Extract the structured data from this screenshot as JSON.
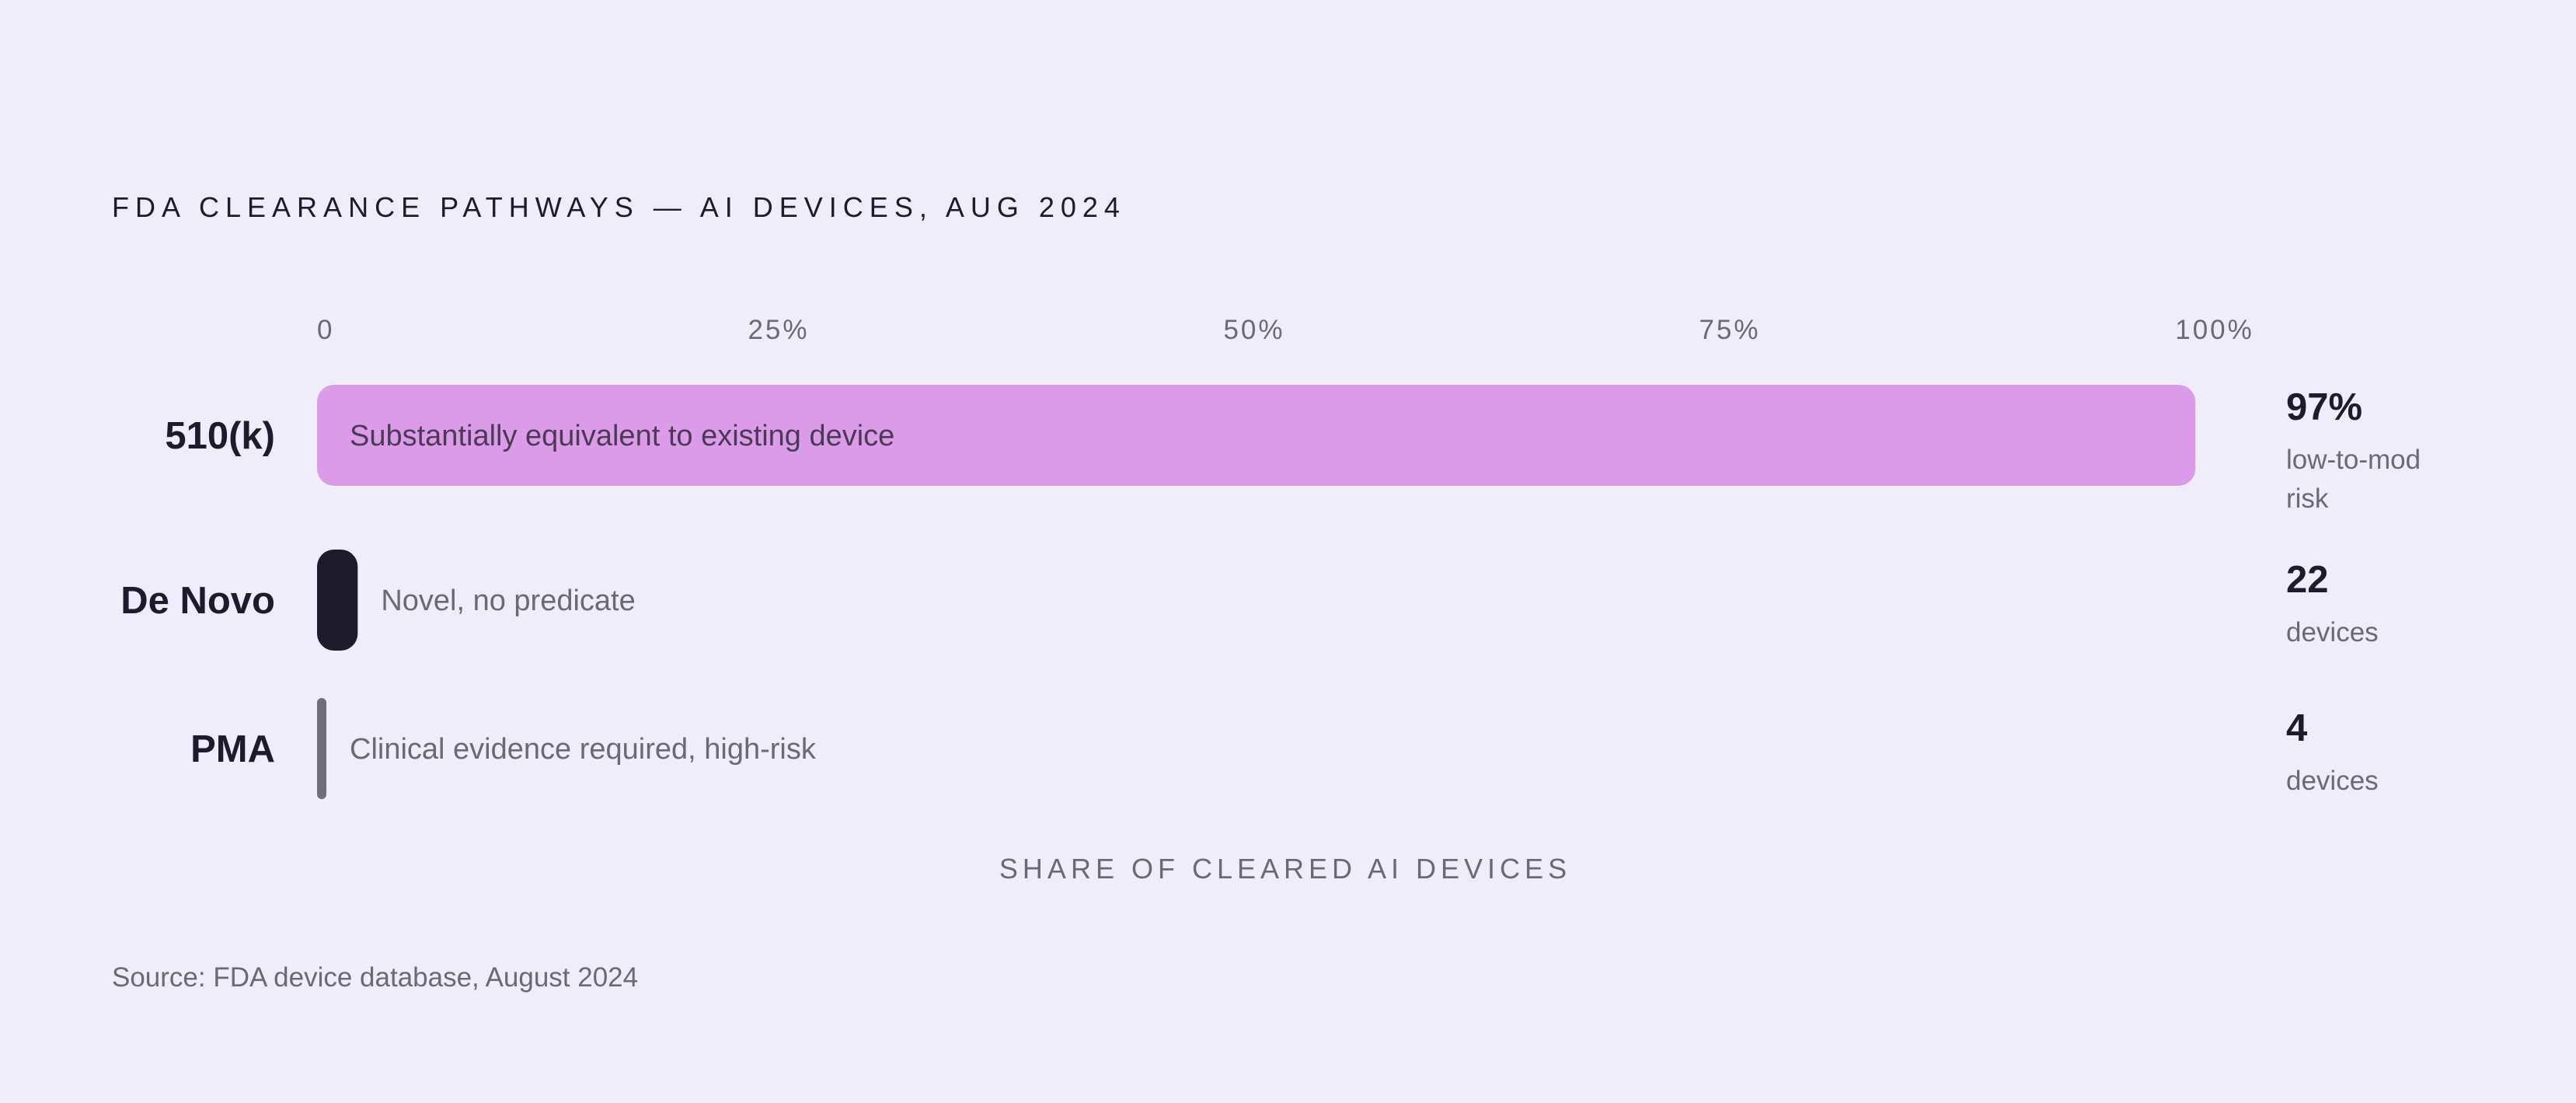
{
  "title": "FDA CLEARANCE PATHWAYS — AI DEVICES, AUG 2024",
  "source": "Source: FDA device database, August 2024",
  "chart_data": {
    "type": "bar",
    "orientation": "horizontal",
    "xlabel": "SHARE OF CLEARED AI DEVICES",
    "xlim": [
      0,
      100
    ],
    "ticks": [
      {
        "value": 0,
        "label": "0"
      },
      {
        "value": 25,
        "label": "25%"
      },
      {
        "value": 50,
        "label": "50%"
      },
      {
        "value": 75,
        "label": "75%"
      },
      {
        "value": 100,
        "label": "100%"
      }
    ],
    "grid": false,
    "categories": [
      "510(k)",
      "De Novo",
      "PMA"
    ],
    "bars": [
      {
        "category": "510(k)",
        "value": 97,
        "description": "Substantially equivalent to existing device",
        "stat": "97%",
        "stat_sub": "low-to-mod risk",
        "color": "#dc9be8"
      },
      {
        "category": "De Novo",
        "value": 2.1,
        "description": "Novel, no predicate",
        "stat": "22",
        "stat_sub": "devices",
        "color": "#1e1b2c"
      },
      {
        "category": "PMA",
        "value": 0.4,
        "description": "Clinical evidence required, high-risk",
        "stat": "4",
        "stat_sub": "devices",
        "color": "#706d7d"
      }
    ]
  }
}
